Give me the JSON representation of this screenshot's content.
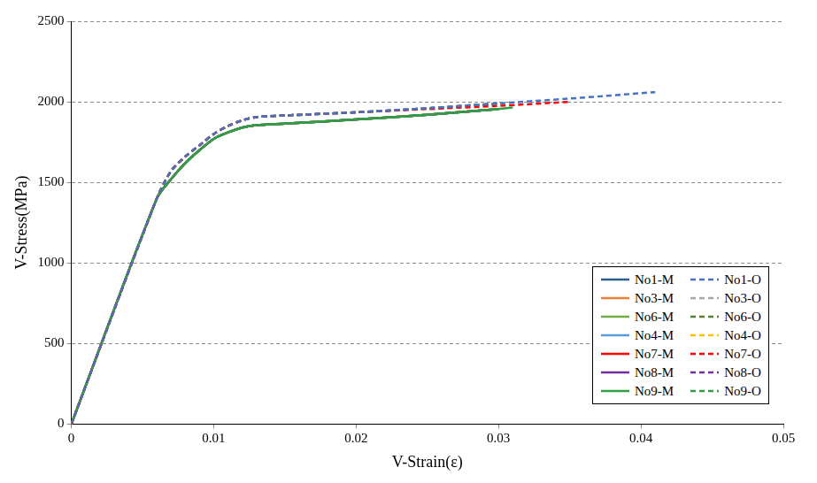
{
  "chart_data": {
    "type": "line",
    "x_label": "V-Strain(ε)",
    "y_label": "V-Stress(MPa)",
    "xlim": [
      0,
      0.05
    ],
    "xticks": [
      0,
      0.01,
      0.02,
      0.03,
      0.04,
      0.05
    ],
    "ylim": [
      0,
      2500
    ],
    "yticks": [
      0,
      500,
      1000,
      1500,
      2000,
      2500
    ],
    "grid": "y",
    "legend": "lower right",
    "series": [
      {
        "name": "No1-M",
        "color": "#2f5f8f",
        "line_style": "solid",
        "x": [
          0,
          0.006,
          0.007,
          0.008,
          0.009,
          0.01,
          0.011,
          0.012,
          0.013,
          0.015,
          0.02,
          0.025,
          0.03
        ],
        "values": [
          0,
          1400,
          1520,
          1620,
          1700,
          1770,
          1810,
          1840,
          1855,
          1865,
          1890,
          1920,
          1955
        ]
      },
      {
        "name": "No1-O",
        "color": "#4472c4",
        "line_style": "dashed",
        "x": [
          0,
          0.006,
          0.007,
          0.008,
          0.009,
          0.01,
          0.011,
          0.012,
          0.013,
          0.015,
          0.02,
          0.025,
          0.03,
          0.035,
          0.041
        ],
        "values": [
          0,
          1400,
          1570,
          1660,
          1730,
          1800,
          1850,
          1885,
          1905,
          1915,
          1935,
          1960,
          1990,
          2020,
          2060
        ]
      },
      {
        "name": "No3-M",
        "color": "#ed7d31",
        "line_style": "solid",
        "x": [
          0,
          0.006,
          0.007,
          0.008,
          0.009,
          0.01,
          0.011,
          0.012,
          0.013,
          0.015,
          0.02,
          0.025,
          0.03
        ],
        "values": [
          0,
          1400,
          1520,
          1620,
          1700,
          1770,
          1810,
          1840,
          1855,
          1865,
          1890,
          1920,
          1955
        ]
      },
      {
        "name": "No3-O",
        "color": "#a5a5a5",
        "line_style": "dashed",
        "x": [
          0,
          0.006,
          0.007,
          0.008,
          0.009,
          0.01,
          0.011,
          0.012,
          0.013,
          0.015,
          0.02,
          0.025,
          0.03
        ],
        "values": [
          0,
          1400,
          1570,
          1660,
          1730,
          1800,
          1850,
          1885,
          1905,
          1915,
          1935,
          1960,
          1990
        ]
      },
      {
        "name": "No6-M",
        "color": "#70ad47",
        "line_style": "solid",
        "x": [
          0,
          0.006,
          0.007,
          0.008,
          0.009,
          0.01,
          0.011,
          0.012,
          0.013,
          0.015,
          0.02,
          0.025,
          0.03
        ],
        "values": [
          0,
          1400,
          1520,
          1620,
          1700,
          1770,
          1810,
          1840,
          1855,
          1865,
          1890,
          1920,
          1955
        ]
      },
      {
        "name": "No6-O",
        "color": "#548235",
        "line_style": "dashed",
        "x": [
          0,
          0.006,
          0.007,
          0.008,
          0.009,
          0.01,
          0.011,
          0.012,
          0.013,
          0.015,
          0.02,
          0.025,
          0.03
        ],
        "values": [
          0,
          1400,
          1570,
          1660,
          1730,
          1800,
          1850,
          1885,
          1905,
          1915,
          1935,
          1960,
          1990
        ]
      },
      {
        "name": "No4-M",
        "color": "#5b9bd5",
        "line_style": "solid",
        "x": [
          0,
          0.006,
          0.007,
          0.008,
          0.009,
          0.01,
          0.011,
          0.012,
          0.013,
          0.015,
          0.02,
          0.025,
          0.03
        ],
        "values": [
          0,
          1400,
          1520,
          1620,
          1700,
          1770,
          1810,
          1840,
          1855,
          1865,
          1890,
          1920,
          1955
        ]
      },
      {
        "name": "No4-O",
        "color": "#ffc000",
        "line_style": "dashed",
        "x": [
          0,
          0.006,
          0.007,
          0.008,
          0.009,
          0.01,
          0.011,
          0.012,
          0.013,
          0.015,
          0.02,
          0.025,
          0.03
        ],
        "values": [
          0,
          1400,
          1570,
          1660,
          1730,
          1800,
          1850,
          1885,
          1905,
          1915,
          1935,
          1960,
          1990
        ]
      },
      {
        "name": "No7-M",
        "color": "#ff0000",
        "line_style": "solid",
        "x": [
          0,
          0.006,
          0.007,
          0.008,
          0.009,
          0.01,
          0.011,
          0.012,
          0.013,
          0.015,
          0.02,
          0.025,
          0.03
        ],
        "values": [
          0,
          1400,
          1520,
          1620,
          1700,
          1770,
          1810,
          1840,
          1855,
          1865,
          1890,
          1920,
          1955
        ]
      },
      {
        "name": "No7-O",
        "color": "#ff0000",
        "line_style": "dashed",
        "x": [
          0,
          0.006,
          0.007,
          0.008,
          0.009,
          0.01,
          0.011,
          0.012,
          0.013,
          0.015,
          0.02,
          0.025,
          0.03,
          0.035
        ],
        "values": [
          0,
          1400,
          1570,
          1660,
          1730,
          1800,
          1850,
          1885,
          1905,
          1915,
          1935,
          1955,
          1975,
          2000
        ]
      },
      {
        "name": "No8-M",
        "color": "#7030a0",
        "line_style": "solid",
        "x": [
          0,
          0.006,
          0.007,
          0.008,
          0.009,
          0.01,
          0.011,
          0.012,
          0.013,
          0.015,
          0.02,
          0.025,
          0.03
        ],
        "values": [
          0,
          1400,
          1520,
          1620,
          1700,
          1770,
          1810,
          1840,
          1855,
          1865,
          1890,
          1920,
          1955
        ]
      },
      {
        "name": "No8-O",
        "color": "#7030a0",
        "line_style": "dashed",
        "x": [
          0,
          0.006,
          0.007,
          0.008,
          0.009,
          0.01,
          0.011,
          0.012,
          0.013,
          0.015,
          0.02,
          0.025,
          0.03
        ],
        "values": [
          0,
          1400,
          1570,
          1660,
          1730,
          1800,
          1850,
          1885,
          1905,
          1915,
          1935,
          1960,
          1990
        ]
      },
      {
        "name": "No9-M",
        "color": "#2ea043",
        "line_style": "solid",
        "x": [
          0,
          0.006,
          0.007,
          0.008,
          0.009,
          0.01,
          0.011,
          0.012,
          0.013,
          0.015,
          0.02,
          0.025,
          0.03,
          0.031
        ],
        "values": [
          0,
          1400,
          1520,
          1620,
          1700,
          1770,
          1810,
          1840,
          1855,
          1865,
          1890,
          1920,
          1955,
          1965
        ]
      },
      {
        "name": "No9-O",
        "color": "#2ea043",
        "line_style": "dashed",
        "x": [
          0,
          0.006,
          0.007,
          0.008,
          0.009,
          0.01,
          0.011,
          0.012,
          0.013,
          0.015,
          0.02,
          0.025,
          0.03
        ],
        "values": [
          0,
          1400,
          1570,
          1660,
          1730,
          1800,
          1850,
          1885,
          1905,
          1915,
          1935,
          1960,
          1990
        ]
      }
    ]
  }
}
